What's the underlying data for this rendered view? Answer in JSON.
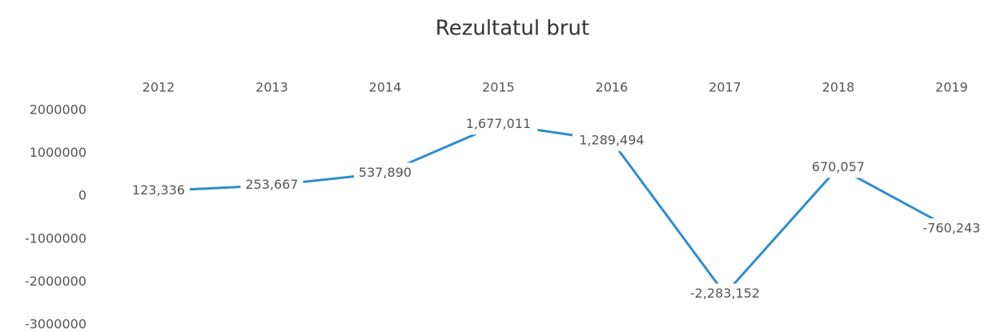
{
  "chart_data": {
    "type": "line",
    "title": "Rezultatul brut",
    "categories": [
      "2012",
      "2013",
      "2014",
      "2015",
      "2016",
      "2017",
      "2018",
      "2019"
    ],
    "series": [
      {
        "name": "Rezultatul brut",
        "color": "#2e8ccf",
        "values": [
          123336,
          253667,
          537890,
          1677011,
          1289494,
          -2283152,
          670057,
          -760243
        ],
        "value_labels": [
          "123,336",
          "253,667",
          "537,890",
          "1,677,011",
          "1,289,494",
          "-2,283,152",
          "670,057",
          "-760,243"
        ]
      }
    ],
    "ylim": [
      -3000000,
      2000000
    ],
    "yticks": [
      2000000,
      1000000,
      0,
      -1000000,
      -2000000,
      -3000000
    ],
    "grid": false
  }
}
